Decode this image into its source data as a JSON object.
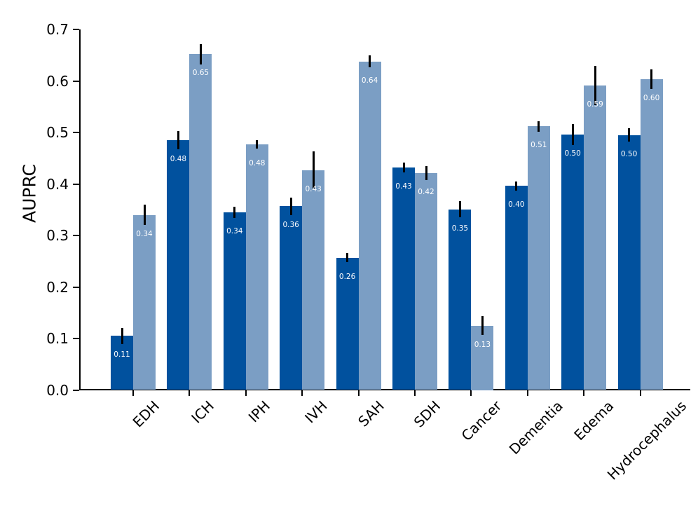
{
  "chart_data": {
    "type": "bar",
    "title": "",
    "xlabel": "",
    "ylabel": "AUPRC",
    "ylim": [
      0,
      0.7
    ],
    "yticks": [
      "0.0",
      "0.1",
      "0.2",
      "0.3",
      "0.4",
      "0.5",
      "0.6",
      "0.7"
    ],
    "grid": false,
    "legend": null,
    "x_tick_rotation_deg": 45,
    "bar_label_color": "#ffffff",
    "error_bar_color": "#000000",
    "categories": [
      "EDH",
      "ICH",
      "IPH",
      "IVH",
      "SAH",
      "SDH",
      "Cancer",
      "Dementia",
      "Edema",
      "Hydrocephalus"
    ],
    "series": [
      {
        "color": "#01519e",
        "values": [
          0.105,
          0.485,
          0.345,
          0.357,
          0.257,
          0.432,
          0.351,
          0.396,
          0.496,
          0.495
        ],
        "errors": [
          0.016,
          0.018,
          0.011,
          0.017,
          0.009,
          0.01,
          0.015,
          0.009,
          0.021,
          0.013
        ],
        "bar_labels": [
          "0.11",
          "0.48",
          "0.34",
          "0.36",
          "0.26",
          "0.43",
          "0.35",
          "0.40",
          "0.50",
          "0.50"
        ]
      },
      {
        "color": "#7b9ec4",
        "values": [
          0.34,
          0.652,
          0.477,
          0.427,
          0.638,
          0.421,
          0.125,
          0.512,
          0.591,
          0.604
        ],
        "errors": [
          0.02,
          0.02,
          0.008,
          0.036,
          0.011,
          0.014,
          0.018,
          0.01,
          0.038,
          0.019
        ],
        "bar_labels": [
          "0.34",
          "0.65",
          "0.48",
          "0.43",
          "0.64",
          "0.42",
          "0.13",
          "0.51",
          "0.59",
          "0.60"
        ]
      }
    ]
  }
}
